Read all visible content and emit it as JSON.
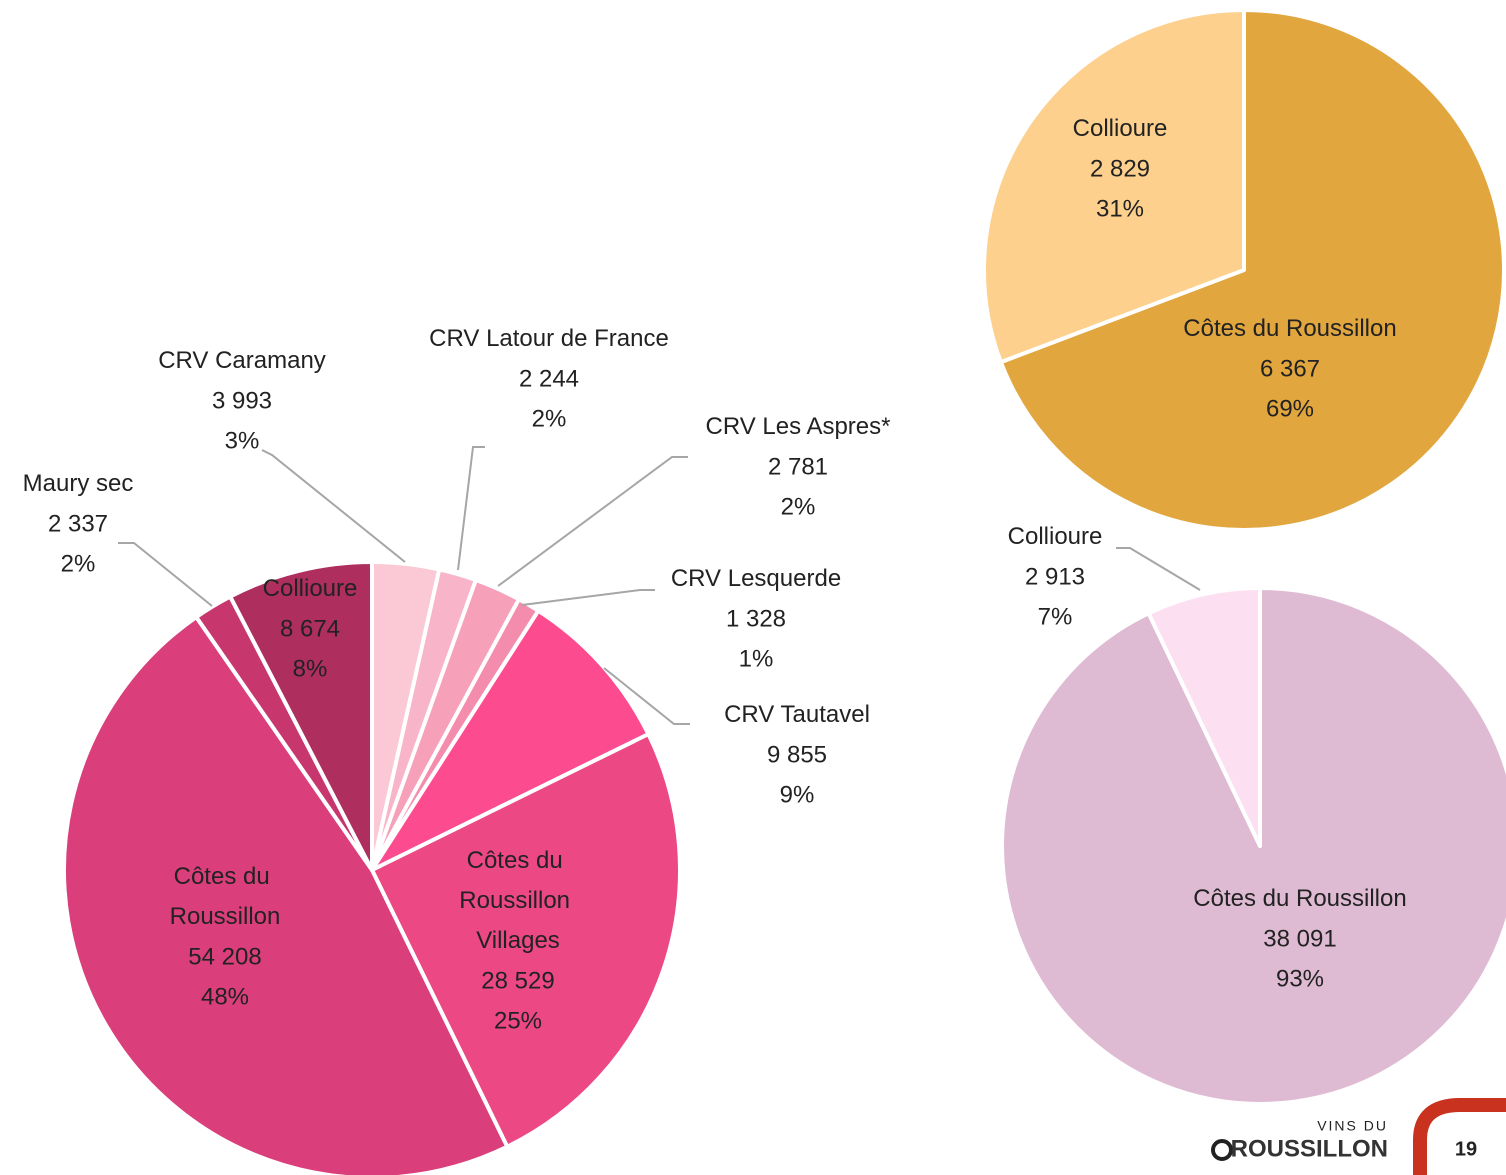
{
  "chart_data": [
    {
      "type": "pie",
      "categories": [
        "CRV Caramany",
        "CRV Latour de France",
        "CRV Les Aspres*",
        "CRV Lesquerde",
        "CRV Tautavel",
        "Côtes du Roussillon Villages",
        "Côtes du Roussillon",
        "Maury sec",
        "Collioure"
      ],
      "values": [
        3993,
        2244,
        2781,
        1328,
        9855,
        28529,
        54208,
        2337,
        8674
      ],
      "value_labels": [
        "3 993",
        "2 244",
        "2 781",
        "1 328",
        "9 855",
        "28 529",
        "54 208",
        "2 337",
        "8 674"
      ],
      "percents": [
        3,
        2,
        2,
        1,
        9,
        25,
        48,
        2,
        8
      ],
      "percent_labels": [
        "3%",
        "2%",
        "2%",
        "1%",
        "9%",
        "25%",
        "48%",
        "2%",
        "8%"
      ],
      "colors": [
        "#FBC8D6",
        "#F8B4C8",
        "#F6A0BA",
        "#F48CAE",
        "#FC4B8F",
        "#EC4884",
        "#DA3F7B",
        "#C8366E",
        "#AE2E5E"
      ]
    },
    {
      "type": "pie",
      "categories": [
        "Côtes du Roussillon",
        "Collioure"
      ],
      "values": [
        6367,
        2829
      ],
      "value_labels": [
        "6 367",
        "2 829"
      ],
      "percents": [
        69,
        31
      ],
      "percent_labels": [
        "69%",
        "31%"
      ],
      "colors": [
        "#E2A63F",
        "#FDD08E"
      ]
    },
    {
      "type": "pie",
      "categories": [
        "Côtes du Roussillon",
        "Collioure"
      ],
      "values": [
        38091,
        2913
      ],
      "value_labels": [
        "38 091",
        "2 913"
      ],
      "percents": [
        93,
        7
      ],
      "percent_labels": [
        "93%",
        "7%"
      ],
      "colors": [
        "#DFBBD3",
        "#FCDFF0"
      ]
    }
  ],
  "footer": {
    "brand_top": "VINS DU",
    "brand": "ROUSSILLON",
    "page": 19
  }
}
